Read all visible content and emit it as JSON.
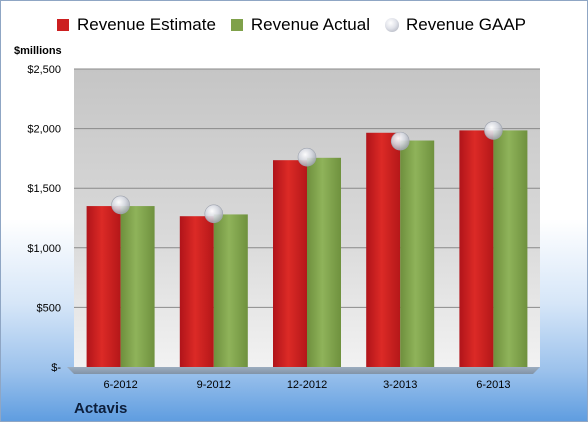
{
  "legend": [
    {
      "label": "Revenue Estimate",
      "color": "#cc1f20"
    },
    {
      "label": "Revenue Actual",
      "color": "#7fa14a"
    },
    {
      "label": "Revenue GAAP",
      "color": "#d7dae2"
    }
  ],
  "unit_label": "$millions",
  "company": "Actavis",
  "chart_data": {
    "type": "bar",
    "categories": [
      "6-2012",
      "9-2012",
      "12-2012",
      "3-2013",
      "6-2013"
    ],
    "series": [
      {
        "name": "Revenue Estimate",
        "values": [
          1350,
          1265,
          1735,
          1965,
          1985
        ]
      },
      {
        "name": "Revenue Actual",
        "values": [
          1350,
          1280,
          1755,
          1900,
          1985
        ]
      },
      {
        "name": "Revenue GAAP",
        "values": [
          1360,
          1285,
          1760,
          1895,
          1985
        ]
      }
    ],
    "yticks": [
      "$-",
      "$500",
      "$1,000",
      "$1,500",
      "$2,000",
      "$2,500"
    ],
    "ytick_values": [
      0,
      500,
      1000,
      1500,
      2000,
      2500
    ],
    "ylim": [
      0,
      2500
    ],
    "grid": true,
    "legend_position": "top"
  }
}
